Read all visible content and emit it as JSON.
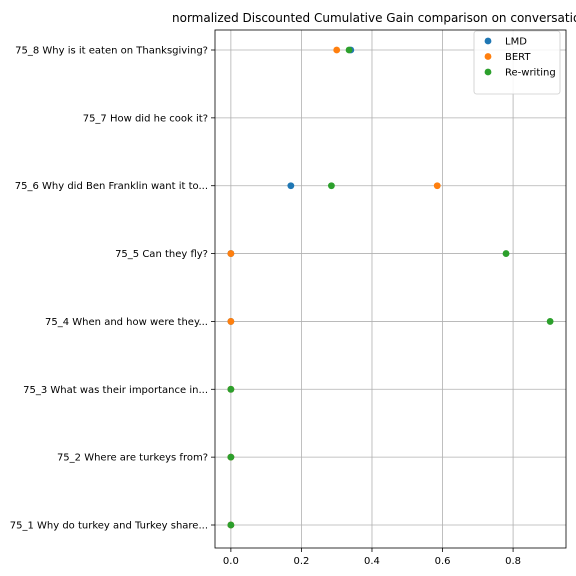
{
  "chart_data": {
    "type": "scatter",
    "title": "normalized Discounted Cumulative Gain comparison on conversation 75",
    "xlabel": "",
    "ylabel": "",
    "xlim": [
      -0.045,
      0.95
    ],
    "x_ticks": [
      0.0,
      0.2,
      0.4,
      0.6,
      0.8
    ],
    "x_tick_labels": [
      "0.0",
      "0.2",
      "0.4",
      "0.6",
      "0.8"
    ],
    "grid": true,
    "legend_position": "top-right",
    "categories": [
      "75_1 Why do turkey and Turkey share...",
      "75_2 Where are turkeys from?",
      "75_3 What was their importance in...",
      "75_4 When and how were they...",
      "75_5 Can they fly?",
      "75_6 Why did Ben Franklin want it to...",
      "75_7 How did he cook it?",
      "75_8 Why is it eaten on Thanksgiving?"
    ],
    "series": [
      {
        "name": "LMD",
        "color": "#1f77b4",
        "points": [
          {
            "category": 0,
            "x": 0.0
          },
          {
            "category": 1,
            "x": 0.0
          },
          {
            "category": 2,
            "x": 0.0
          },
          {
            "category": 3,
            "x": 0.0
          },
          {
            "category": 4,
            "x": 0.0
          },
          {
            "category": 5,
            "x": 0.17
          },
          {
            "category": 7,
            "x": 0.34
          }
        ]
      },
      {
        "name": "BERT",
        "color": "#ff7f0e",
        "points": [
          {
            "category": 0,
            "x": 0.0
          },
          {
            "category": 1,
            "x": 0.0
          },
          {
            "category": 2,
            "x": 0.0
          },
          {
            "category": 3,
            "x": 0.0
          },
          {
            "category": 4,
            "x": 0.0
          },
          {
            "category": 5,
            "x": 0.585
          },
          {
            "category": 7,
            "x": 0.3
          }
        ]
      },
      {
        "name": "Re-writing",
        "color": "#2ca02c",
        "points": [
          {
            "category": 0,
            "x": 0.0
          },
          {
            "category": 1,
            "x": 0.0
          },
          {
            "category": 2,
            "x": 0.0
          },
          {
            "category": 3,
            "x": 0.905
          },
          {
            "category": 4,
            "x": 0.78
          },
          {
            "category": 5,
            "x": 0.285
          },
          {
            "category": 7,
            "x": 0.335
          }
        ]
      }
    ]
  }
}
